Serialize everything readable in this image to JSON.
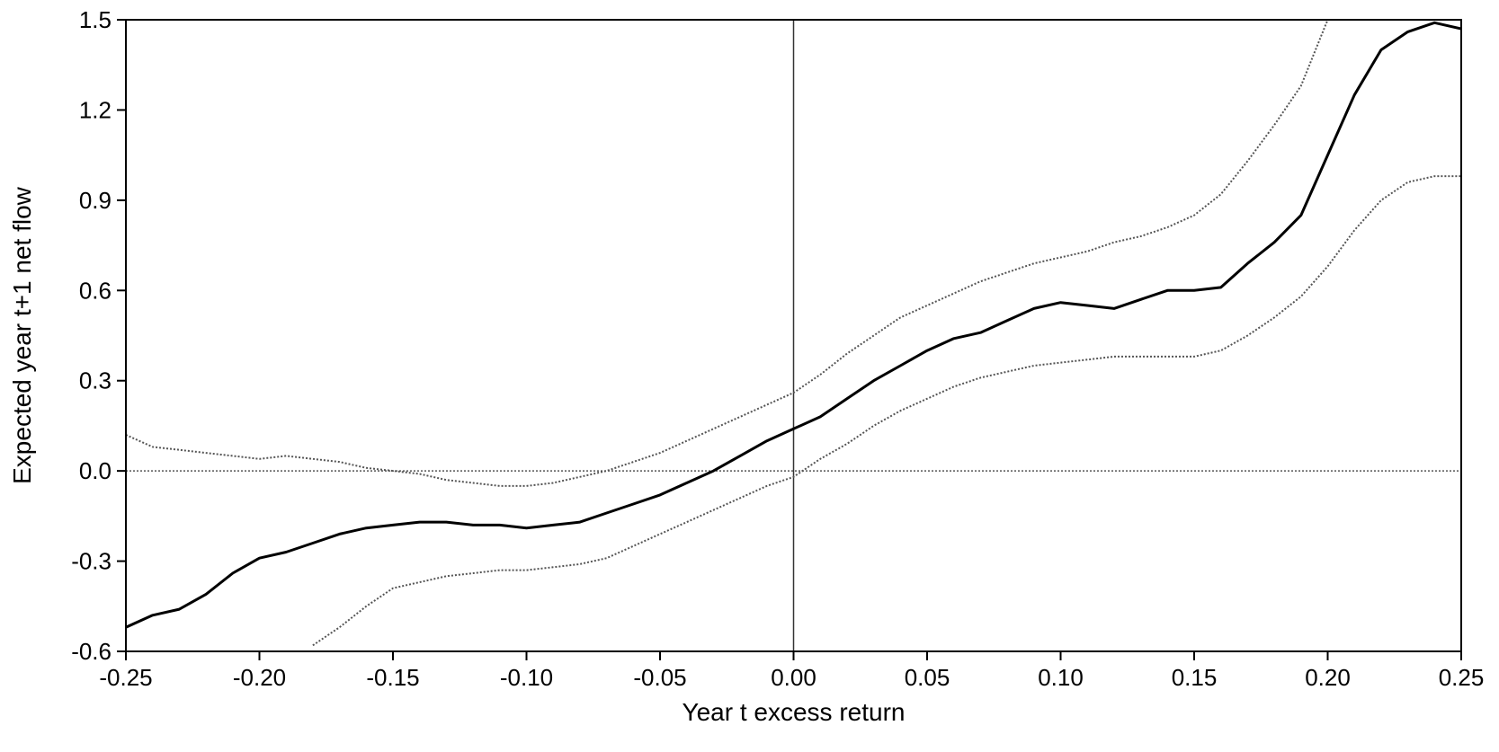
{
  "chart_data": {
    "type": "line",
    "title": "",
    "xlabel": "Year t excess return",
    "ylabel": "Expected year t+1 net flow",
    "xlim": [
      -0.25,
      0.25
    ],
    "ylim": [
      -0.6,
      1.5
    ],
    "x_ticks": [
      -0.25,
      -0.2,
      -0.15,
      -0.1,
      -0.05,
      0.0,
      0.05,
      0.1,
      0.15,
      0.2,
      0.25
    ],
    "x_tick_labels": [
      "-0.25",
      "-0.20",
      "-0.15",
      "-0.10",
      "-0.05",
      "0.00",
      "0.05",
      "0.10",
      "0.15",
      "0.20",
      "0.25"
    ],
    "y_ticks": [
      1.5,
      1.2,
      0.9,
      0.6,
      0.3,
      0.0,
      -0.3,
      -0.6
    ],
    "y_tick_labels": [
      "1.5",
      "1.2",
      "0.9",
      "0.6",
      "0.3",
      "0.0",
      "-0.3",
      "-0.6"
    ],
    "grid": false,
    "reference_lines": {
      "x": 0.0,
      "y": 0.0
    },
    "series": [
      {
        "style": "solid",
        "color": "#000000",
        "x": [
          -0.25,
          -0.24,
          -0.23,
          -0.22,
          -0.21,
          -0.2,
          -0.19,
          -0.18,
          -0.17,
          -0.16,
          -0.15,
          -0.14,
          -0.13,
          -0.12,
          -0.11,
          -0.1,
          -0.09,
          -0.08,
          -0.07,
          -0.06,
          -0.05,
          -0.04,
          -0.03,
          -0.02,
          -0.01,
          0.0,
          0.01,
          0.02,
          0.03,
          0.04,
          0.05,
          0.06,
          0.07,
          0.08,
          0.09,
          0.1,
          0.11,
          0.12,
          0.13,
          0.14,
          0.15,
          0.16,
          0.17,
          0.18,
          0.19,
          0.2,
          0.21,
          0.22,
          0.23,
          0.24,
          0.25
        ],
        "y": [
          -0.52,
          -0.48,
          -0.46,
          -0.41,
          -0.34,
          -0.29,
          -0.27,
          -0.24,
          -0.21,
          -0.19,
          -0.18,
          -0.17,
          -0.17,
          -0.18,
          -0.18,
          -0.19,
          -0.18,
          -0.17,
          -0.14,
          -0.11,
          -0.08,
          -0.04,
          0.0,
          0.05,
          0.1,
          0.14,
          0.18,
          0.24,
          0.3,
          0.35,
          0.4,
          0.44,
          0.46,
          0.5,
          0.54,
          0.56,
          0.55,
          0.54,
          0.57,
          0.6,
          0.6,
          0.61,
          0.69,
          0.76,
          0.85,
          1.05,
          1.25,
          1.4,
          1.46,
          1.49,
          1.47
        ]
      },
      {
        "style": "dotted",
        "color": "#555555",
        "x": [
          -0.25,
          -0.24,
          -0.23,
          -0.22,
          -0.21,
          -0.2,
          -0.19,
          -0.18,
          -0.17,
          -0.16,
          -0.15,
          -0.14,
          -0.13,
          -0.12,
          -0.11,
          -0.1,
          -0.09,
          -0.08,
          -0.07,
          -0.06,
          -0.05,
          -0.04,
          -0.03,
          -0.02,
          -0.01,
          0.0,
          0.01,
          0.02,
          0.03,
          0.04,
          0.05,
          0.06,
          0.07,
          0.08,
          0.09,
          0.1,
          0.11,
          0.12,
          0.13,
          0.14,
          0.15,
          0.16,
          0.17,
          0.18,
          0.19,
          0.2
        ],
        "y": [
          0.12,
          0.08,
          0.07,
          0.06,
          0.05,
          0.04,
          0.05,
          0.04,
          0.03,
          0.01,
          0.0,
          -0.01,
          -0.03,
          -0.04,
          -0.05,
          -0.05,
          -0.04,
          -0.02,
          0.0,
          0.03,
          0.06,
          0.1,
          0.14,
          0.18,
          0.22,
          0.26,
          0.32,
          0.39,
          0.45,
          0.51,
          0.55,
          0.59,
          0.63,
          0.66,
          0.69,
          0.71,
          0.73,
          0.76,
          0.78,
          0.81,
          0.85,
          0.92,
          1.03,
          1.15,
          1.28,
          1.5
        ]
      },
      {
        "style": "dotted",
        "color": "#555555",
        "x": [
          -0.18,
          -0.17,
          -0.16,
          -0.15,
          -0.14,
          -0.13,
          -0.12,
          -0.11,
          -0.1,
          -0.09,
          -0.08,
          -0.07,
          -0.06,
          -0.05,
          -0.04,
          -0.03,
          -0.02,
          -0.01,
          0.0,
          0.01,
          0.02,
          0.03,
          0.04,
          0.05,
          0.06,
          0.07,
          0.08,
          0.09,
          0.1,
          0.11,
          0.12,
          0.13,
          0.14,
          0.15,
          0.16,
          0.17,
          0.18,
          0.19,
          0.2,
          0.21,
          0.22,
          0.23,
          0.24,
          0.25
        ],
        "y": [
          -0.58,
          -0.52,
          -0.45,
          -0.39,
          -0.37,
          -0.35,
          -0.34,
          -0.33,
          -0.33,
          -0.32,
          -0.31,
          -0.29,
          -0.25,
          -0.21,
          -0.17,
          -0.13,
          -0.09,
          -0.05,
          -0.02,
          0.04,
          0.09,
          0.15,
          0.2,
          0.24,
          0.28,
          0.31,
          0.33,
          0.35,
          0.36,
          0.37,
          0.38,
          0.38,
          0.38,
          0.38,
          0.4,
          0.45,
          0.51,
          0.58,
          0.68,
          0.8,
          0.9,
          0.96,
          0.98,
          0.98
        ]
      }
    ]
  }
}
